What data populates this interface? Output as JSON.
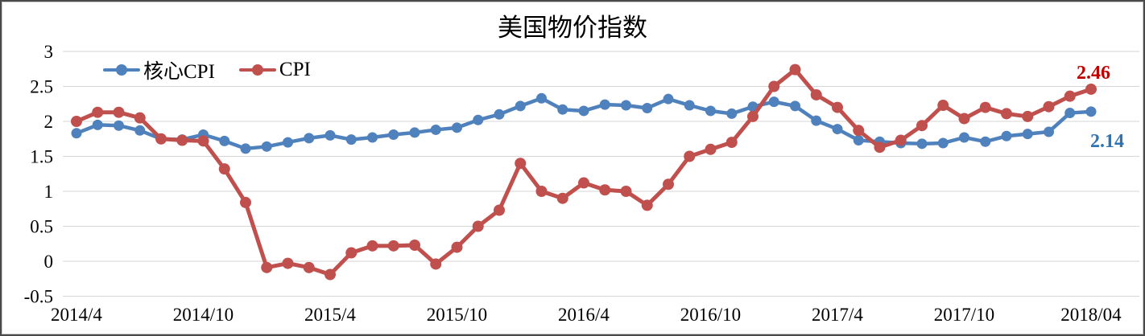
{
  "chart_data": {
    "type": "line",
    "title": "美国物价指数",
    "x_tick_labels": [
      "2014/4",
      "2014/10",
      "2015/4",
      "2015/10",
      "2016/4",
      "2016/10",
      "2017/4",
      "2017/10",
      "2018/04"
    ],
    "x_tick_interval_months": 6,
    "y_ticks": [
      "3",
      "2.5",
      "2",
      "1.5",
      "1",
      "0.5",
      "0",
      "-0.5"
    ],
    "y_tick_values": [
      3,
      2.5,
      2,
      1.5,
      1,
      0.5,
      0,
      -0.5
    ],
    "ylim": [
      -0.5,
      3
    ],
    "grid": true,
    "legend_position": "top-left",
    "series": [
      {
        "key": "core-cpi",
        "name": "核心CPI",
        "color": "#4F81BD",
        "values": [
          1.83,
          1.95,
          1.94,
          1.87,
          1.75,
          1.74,
          1.81,
          1.72,
          1.61,
          1.64,
          1.7,
          1.76,
          1.8,
          1.74,
          1.77,
          1.81,
          1.84,
          1.88,
          1.91,
          2.02,
          2.1,
          2.22,
          2.33,
          2.17,
          2.15,
          2.24,
          2.23,
          2.19,
          2.32,
          2.23,
          2.15,
          2.11,
          2.21,
          2.28,
          2.22,
          2.01,
          1.89,
          1.73,
          1.71,
          1.69,
          1.68,
          1.69,
          1.77,
          1.71,
          1.79,
          1.82,
          1.85,
          2.12,
          2.14
        ]
      },
      {
        "key": "cpi",
        "name": "CPI",
        "color": "#C0504D",
        "values": [
          2.0,
          2.13,
          2.13,
          2.05,
          1.75,
          1.73,
          1.72,
          1.32,
          0.84,
          -0.09,
          -0.03,
          -0.09,
          -0.19,
          0.12,
          0.22,
          0.22,
          0.23,
          -0.04,
          0.2,
          0.5,
          0.73,
          1.4,
          1.0,
          0.9,
          1.12,
          1.02,
          1.0,
          0.8,
          1.1,
          1.5,
          1.6,
          1.7,
          2.07,
          2.5,
          2.74,
          2.38,
          2.2,
          1.87,
          1.63,
          1.73,
          1.94,
          2.23,
          2.04,
          2.2,
          2.11,
          2.07,
          2.21,
          2.36,
          2.46
        ]
      }
    ],
    "end_labels": {
      "cpi": {
        "text": "2.46",
        "color": "#C00000"
      },
      "core_cpi": {
        "text": "2.14",
        "color": "#2E74B5"
      }
    },
    "gridline_color": "#D6D6D6",
    "axis_text_color": "#000000"
  }
}
